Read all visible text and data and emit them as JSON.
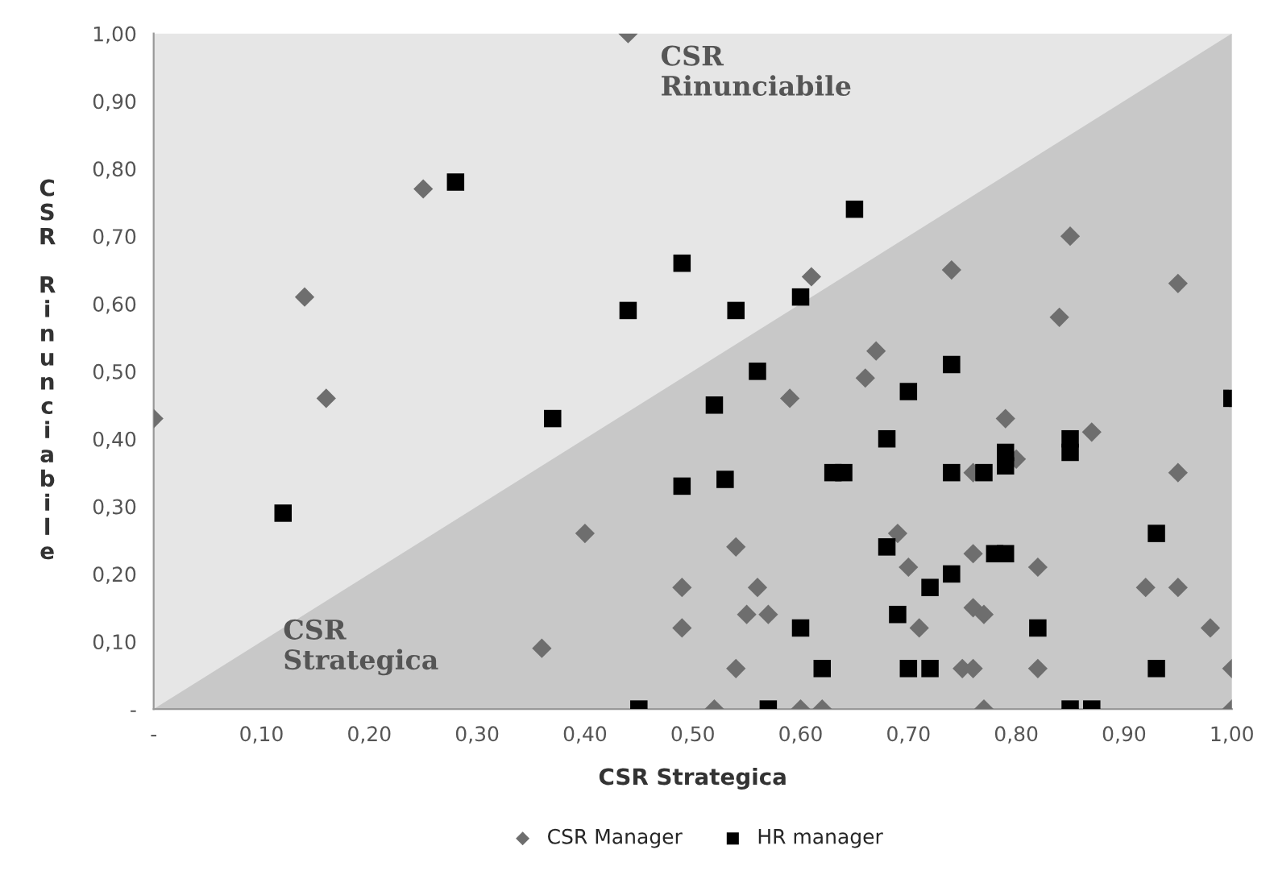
{
  "chart_data": {
    "type": "scatter",
    "xlabel": "CSR Strategica",
    "ylabel": "CSR Rinunciabile",
    "annotations": [
      "CSR Rinunciabile",
      "CSR Strategica"
    ],
    "xlim": [
      0,
      1
    ],
    "ylim": [
      0,
      1
    ],
    "xticks": [
      {
        "value": 0,
        "label": "-"
      },
      {
        "value": 0.1,
        "label": "0,10"
      },
      {
        "value": 0.2,
        "label": "0,20"
      },
      {
        "value": 0.3,
        "label": "0,30"
      },
      {
        "value": 0.4,
        "label": "0,40"
      },
      {
        "value": 0.5,
        "label": "0,50"
      },
      {
        "value": 0.6,
        "label": "0,60"
      },
      {
        "value": 0.7,
        "label": "0,70"
      },
      {
        "value": 0.8,
        "label": "0,80"
      },
      {
        "value": 0.9,
        "label": "0,90"
      },
      {
        "value": 1,
        "label": "1,00"
      }
    ],
    "yticks": [
      {
        "value": 0,
        "label": "-"
      },
      {
        "value": 0.1,
        "label": "0,10"
      },
      {
        "value": 0.2,
        "label": "0,20"
      },
      {
        "value": 0.3,
        "label": "0,30"
      },
      {
        "value": 0.4,
        "label": "0,40"
      },
      {
        "value": 0.5,
        "label": "0,50"
      },
      {
        "value": 0.6,
        "label": "0,60"
      },
      {
        "value": 0.7,
        "label": "0,70"
      },
      {
        "value": 0.8,
        "label": "0,80"
      },
      {
        "value": 0.9,
        "label": "0,90"
      },
      {
        "value": 1,
        "label": "1,00"
      }
    ],
    "grid": false,
    "legend": "bottom",
    "series": [
      {
        "type": "area",
        "color": "#c8c8c8",
        "x": [
          0,
          1
        ],
        "values": [
          0,
          1
        ]
      },
      {
        "name": "CSR Manager",
        "color": "#6e6e6e",
        "marker": "diamond",
        "x": [
          0,
          0.14,
          0.16,
          0.25,
          0.44,
          0.4,
          0.36,
          0.61,
          0.74,
          0.85,
          0.95,
          0.84,
          0.67,
          0.66,
          0.59,
          0.79,
          0.87,
          0.8,
          0.76,
          0.95,
          0.69,
          0.54,
          0.76,
          0.7,
          0.82,
          0.49,
          0.56,
          0.92,
          0.95,
          0.76,
          0.77,
          0.55,
          0.57,
          0.49,
          0.71,
          0.98,
          0.54,
          0.75,
          0.76,
          0.82,
          1.0,
          0.52,
          0.6,
          0.62,
          0.77,
          1.0
        ],
        "values": [
          0.43,
          0.61,
          0.46,
          0.77,
          1.0,
          0.26,
          0.09,
          0.64,
          0.65,
          0.7,
          0.63,
          0.58,
          0.53,
          0.49,
          0.46,
          0.43,
          0.41,
          0.37,
          0.35,
          0.35,
          0.26,
          0.24,
          0.23,
          0.21,
          0.21,
          0.18,
          0.18,
          0.18,
          0.18,
          0.15,
          0.14,
          0.14,
          0.14,
          0.12,
          0.12,
          0.12,
          0.06,
          0.06,
          0.06,
          0.06,
          0.06,
          0,
          0,
          0,
          0,
          0
        ]
      },
      {
        "name": "HR manager",
        "color": "#000000",
        "marker": "square",
        "x": [
          0.28,
          0.12,
          0.37,
          0.44,
          0.45,
          0.65,
          0.49,
          0.54,
          0.6,
          0.56,
          0.74,
          0.52,
          0.7,
          1.0,
          0.68,
          0.85,
          0.85,
          0.79,
          0.79,
          0.63,
          0.64,
          0.74,
          0.77,
          0.53,
          0.49,
          0.93,
          0.68,
          0.78,
          0.79,
          0.74,
          0.72,
          0.69,
          0.6,
          0.82,
          0.62,
          0.7,
          0.72,
          0.93,
          0.57,
          0.85,
          0.87
        ],
        "values": [
          0.78,
          0.29,
          0.43,
          0.59,
          0,
          0.74,
          0.66,
          0.59,
          0.61,
          0.5,
          0.51,
          0.45,
          0.47,
          0.46,
          0.4,
          0.4,
          0.38,
          0.38,
          0.36,
          0.35,
          0.35,
          0.35,
          0.35,
          0.34,
          0.33,
          0.26,
          0.24,
          0.23,
          0.23,
          0.2,
          0.18,
          0.14,
          0.12,
          0.12,
          0.06,
          0.06,
          0.06,
          0.06,
          0,
          0,
          0
        ]
      }
    ]
  }
}
